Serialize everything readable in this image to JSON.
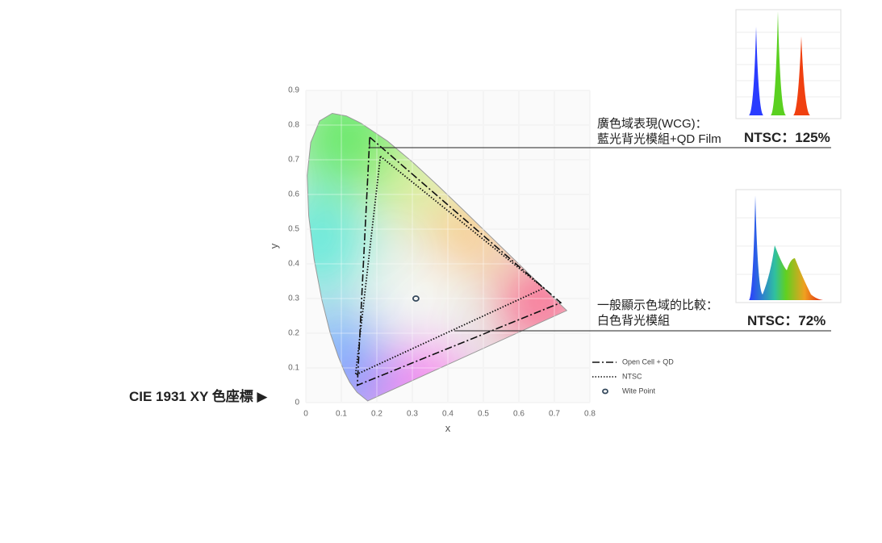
{
  "chart_data": {
    "type": "chromaticity",
    "xlabel": "x",
    "ylabel": "y",
    "xlim": [
      0,
      0.8
    ],
    "ylim": [
      0,
      0.9
    ],
    "xticks": [
      0,
      0.1,
      0.2,
      0.3,
      0.4,
      0.5,
      0.6,
      0.7,
      0.8
    ],
    "yticks": [
      0,
      0.1,
      0.2,
      0.3,
      0.4,
      0.5,
      0.6,
      0.7,
      0.8,
      0.9
    ],
    "grid": true,
    "series": [
      {
        "name": "Open Cell + QD",
        "color": "#111111",
        "style": "dashdot",
        "x": [
          0.18,
          0.718,
          0.145
        ],
        "y": [
          0.765,
          0.288,
          0.05
        ]
      },
      {
        "name": "NTSC",
        "color": "#111111",
        "style": "dotted",
        "x": [
          0.21,
          0.67,
          0.14
        ],
        "y": [
          0.71,
          0.33,
          0.08
        ]
      },
      {
        "name": "Wite Point",
        "color": "#33475b",
        "style": "marker",
        "x": [
          0.31
        ],
        "y": [
          0.3
        ]
      }
    ],
    "annotations": [
      "廣色域表現(WCG)：",
      "藍光背光模組+QD Film",
      "NTSC：125%",
      "一般顯示色域的比較：",
      "白色背光模組",
      "NTSC：72%",
      "CIE 1931 XY 色座標 ▶"
    ]
  }
}
